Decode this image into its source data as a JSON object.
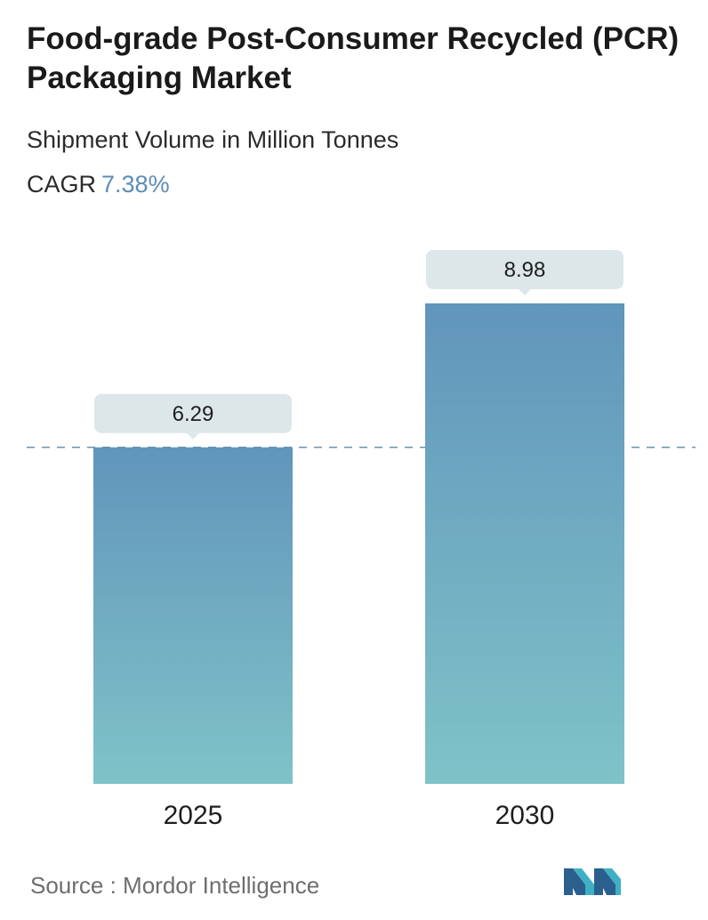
{
  "header": {
    "title": "Food-grade Post-Consumer Recycled (PCR) Packaging Market",
    "subtitle": "Shipment Volume in Million Tonnes",
    "cagr_label": "CAGR",
    "cagr_value": "7.38%"
  },
  "chart_data": {
    "type": "bar",
    "title": "Food-grade Post-Consumer Recycled (PCR) Packaging Market",
    "subtitle": "Shipment Volume in Million Tonnes",
    "categories": [
      "2025",
      "2030"
    ],
    "values": [
      6.29,
      8.98
    ],
    "data_labels": [
      "6.29",
      "8.98"
    ],
    "xlabel": "",
    "ylabel": "",
    "ylim": [
      0,
      8.98
    ],
    "grid": false,
    "reference_line": {
      "value": 6.29,
      "style": "dashed"
    },
    "colors": {
      "bar_top": "#6195bb",
      "bar_bottom": "#7fc3c8",
      "label_box": "#dde7ea",
      "ref_line": "#6d92ab"
    }
  },
  "footer": {
    "source": "Source :  Mordor Intelligence",
    "logo_name": "mordor-intelligence-logo"
  }
}
